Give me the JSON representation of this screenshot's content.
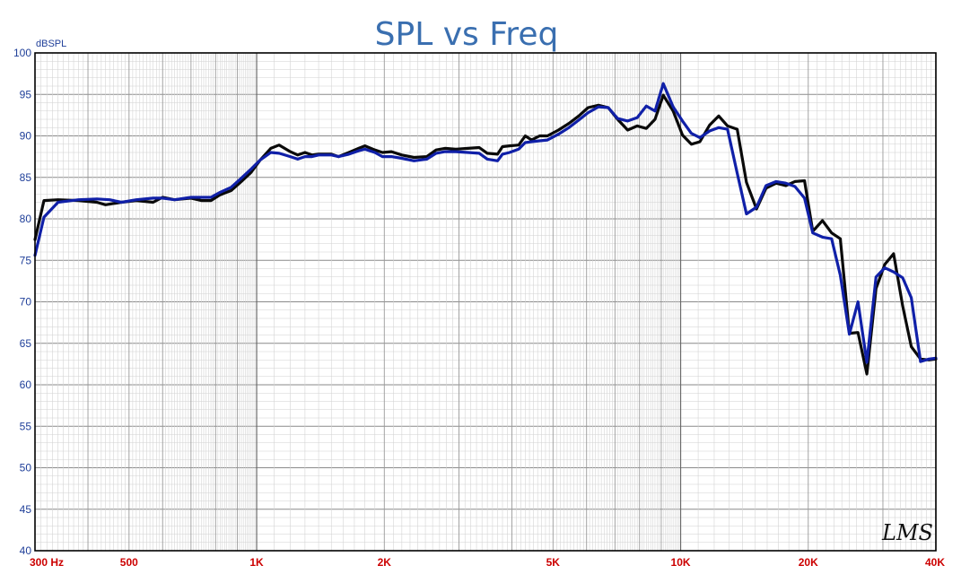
{
  "chart_data": {
    "type": "line",
    "title": "SPL vs Freq",
    "ylabel": "dBSPL",
    "xlabel": "",
    "x_scale": "log",
    "xlim": [
      300,
      40000
    ],
    "ylim": [
      40,
      100
    ],
    "grid": true,
    "y_ticks": [
      "100",
      "95",
      "90",
      "85",
      "80",
      "75",
      "70",
      "65",
      "60",
      "55",
      "50",
      "45",
      "40"
    ],
    "x_tick_labels": [
      {
        "value": 300,
        "label": "300 Hz"
      },
      {
        "value": 500,
        "label": "500"
      },
      {
        "value": 1000,
        "label": "1K"
      },
      {
        "value": 2000,
        "label": "2K"
      },
      {
        "value": 5000,
        "label": "5K"
      },
      {
        "value": 10000,
        "label": "10K"
      },
      {
        "value": 20000,
        "label": "20K"
      },
      {
        "value": 40000,
        "label": "40K"
      }
    ],
    "series": [
      {
        "color": "#0a0a0a",
        "points": [
          [
            300,
            77.5
          ],
          [
            315,
            82.2
          ],
          [
            340,
            82.3
          ],
          [
            380,
            82.2
          ],
          [
            420,
            82.0
          ],
          [
            440,
            81.7
          ],
          [
            480,
            82.0
          ],
          [
            520,
            82.2
          ],
          [
            570,
            82.0
          ],
          [
            600,
            82.6
          ],
          [
            640,
            82.3
          ],
          [
            700,
            82.5
          ],
          [
            740,
            82.2
          ],
          [
            780,
            82.2
          ],
          [
            820,
            82.9
          ],
          [
            870,
            83.4
          ],
          [
            920,
            84.5
          ],
          [
            970,
            85.6
          ],
          [
            1020,
            87.1
          ],
          [
            1080,
            88.5
          ],
          [
            1130,
            88.9
          ],
          [
            1200,
            88.1
          ],
          [
            1250,
            87.7
          ],
          [
            1300,
            88.0
          ],
          [
            1350,
            87.7
          ],
          [
            1400,
            87.8
          ],
          [
            1500,
            87.8
          ],
          [
            1560,
            87.5
          ],
          [
            1650,
            88.0
          ],
          [
            1740,
            88.5
          ],
          [
            1800,
            88.8
          ],
          [
            1900,
            88.3
          ],
          [
            1980,
            88.0
          ],
          [
            2080,
            88.1
          ],
          [
            2200,
            87.7
          ],
          [
            2350,
            87.4
          ],
          [
            2520,
            87.5
          ],
          [
            2650,
            88.3
          ],
          [
            2780,
            88.5
          ],
          [
            2950,
            88.4
          ],
          [
            3150,
            88.5
          ],
          [
            3350,
            88.6
          ],
          [
            3500,
            87.9
          ],
          [
            3700,
            87.8
          ],
          [
            3800,
            88.7
          ],
          [
            3950,
            88.8
          ],
          [
            4150,
            88.9
          ],
          [
            4300,
            90.0
          ],
          [
            4450,
            89.5
          ],
          [
            4650,
            90.0
          ],
          [
            4850,
            90.0
          ],
          [
            5150,
            90.7
          ],
          [
            5450,
            91.5
          ],
          [
            5750,
            92.4
          ],
          [
            6050,
            93.4
          ],
          [
            6400,
            93.7
          ],
          [
            6750,
            93.4
          ],
          [
            7100,
            92.0
          ],
          [
            7500,
            90.7
          ],
          [
            7900,
            91.2
          ],
          [
            8300,
            90.9
          ],
          [
            8700,
            92.0
          ],
          [
            9100,
            94.9
          ],
          [
            9600,
            93.0
          ],
          [
            10100,
            90.1
          ],
          [
            10600,
            89.0
          ],
          [
            11100,
            89.3
          ],
          [
            11700,
            91.3
          ],
          [
            12300,
            92.4
          ],
          [
            12900,
            91.2
          ],
          [
            13600,
            90.8
          ],
          [
            14300,
            84.4
          ],
          [
            15100,
            81.2
          ],
          [
            15900,
            83.7
          ],
          [
            16800,
            84.3
          ],
          [
            17700,
            84.0
          ],
          [
            18600,
            84.5
          ],
          [
            19600,
            84.6
          ],
          [
            20500,
            78.5
          ],
          [
            21600,
            79.8
          ],
          [
            22700,
            78.3
          ],
          [
            23800,
            77.6
          ],
          [
            25000,
            66.2
          ],
          [
            26200,
            66.3
          ],
          [
            27500,
            61.3
          ],
          [
            28900,
            71.6
          ],
          [
            30300,
            74.5
          ],
          [
            31800,
            75.8
          ],
          [
            33400,
            69.5
          ],
          [
            35000,
            64.6
          ],
          [
            36800,
            63.1
          ],
          [
            38500,
            63.0
          ],
          [
            40000,
            63.1
          ]
        ]
      },
      {
        "color": "#1020a8",
        "points": [
          [
            300,
            75.6
          ],
          [
            315,
            80.2
          ],
          [
            340,
            82.0
          ],
          [
            380,
            82.3
          ],
          [
            420,
            82.4
          ],
          [
            450,
            82.3
          ],
          [
            480,
            82.0
          ],
          [
            520,
            82.3
          ],
          [
            570,
            82.5
          ],
          [
            600,
            82.5
          ],
          [
            640,
            82.3
          ],
          [
            700,
            82.6
          ],
          [
            740,
            82.6
          ],
          [
            780,
            82.6
          ],
          [
            820,
            83.2
          ],
          [
            870,
            83.8
          ],
          [
            920,
            84.9
          ],
          [
            970,
            86.0
          ],
          [
            1020,
            87.1
          ],
          [
            1080,
            88.0
          ],
          [
            1130,
            87.9
          ],
          [
            1200,
            87.5
          ],
          [
            1250,
            87.2
          ],
          [
            1300,
            87.5
          ],
          [
            1350,
            87.5
          ],
          [
            1400,
            87.7
          ],
          [
            1500,
            87.7
          ],
          [
            1560,
            87.5
          ],
          [
            1650,
            87.8
          ],
          [
            1740,
            88.2
          ],
          [
            1800,
            88.4
          ],
          [
            1900,
            88.0
          ],
          [
            1980,
            87.5
          ],
          [
            2080,
            87.5
          ],
          [
            2200,
            87.3
          ],
          [
            2350,
            87.0
          ],
          [
            2520,
            87.2
          ],
          [
            2650,
            87.9
          ],
          [
            2780,
            88.1
          ],
          [
            2950,
            88.1
          ],
          [
            3150,
            88.0
          ],
          [
            3350,
            87.9
          ],
          [
            3500,
            87.2
          ],
          [
            3700,
            87.0
          ],
          [
            3800,
            87.8
          ],
          [
            3950,
            88.0
          ],
          [
            4150,
            88.4
          ],
          [
            4300,
            89.2
          ],
          [
            4450,
            89.3
          ],
          [
            4650,
            89.4
          ],
          [
            4850,
            89.5
          ],
          [
            5150,
            90.2
          ],
          [
            5450,
            91.0
          ],
          [
            5750,
            91.9
          ],
          [
            6050,
            92.8
          ],
          [
            6400,
            93.5
          ],
          [
            6750,
            93.4
          ],
          [
            7100,
            92.1
          ],
          [
            7500,
            91.8
          ],
          [
            7900,
            92.2
          ],
          [
            8300,
            93.6
          ],
          [
            8700,
            93.0
          ],
          [
            9100,
            96.3
          ],
          [
            9600,
            93.5
          ],
          [
            10100,
            91.8
          ],
          [
            10600,
            90.3
          ],
          [
            11100,
            89.8
          ],
          [
            11700,
            90.6
          ],
          [
            12300,
            91.0
          ],
          [
            12900,
            90.8
          ],
          [
            13600,
            85.5
          ],
          [
            14300,
            80.6
          ],
          [
            15100,
            81.4
          ],
          [
            15900,
            84.0
          ],
          [
            16800,
            84.5
          ],
          [
            17700,
            84.3
          ],
          [
            18600,
            83.9
          ],
          [
            19600,
            82.5
          ],
          [
            20500,
            78.3
          ],
          [
            21600,
            77.8
          ],
          [
            22700,
            77.6
          ],
          [
            23800,
            73.2
          ],
          [
            25000,
            66.1
          ],
          [
            26200,
            70.0
          ],
          [
            27500,
            62.7
          ],
          [
            28900,
            73.0
          ],
          [
            30300,
            74.1
          ],
          [
            31800,
            73.6
          ],
          [
            33400,
            72.9
          ],
          [
            35000,
            70.5
          ],
          [
            36800,
            62.8
          ],
          [
            38500,
            63.1
          ],
          [
            40000,
            63.2
          ]
        ]
      }
    ],
    "watermark": "LMS"
  }
}
